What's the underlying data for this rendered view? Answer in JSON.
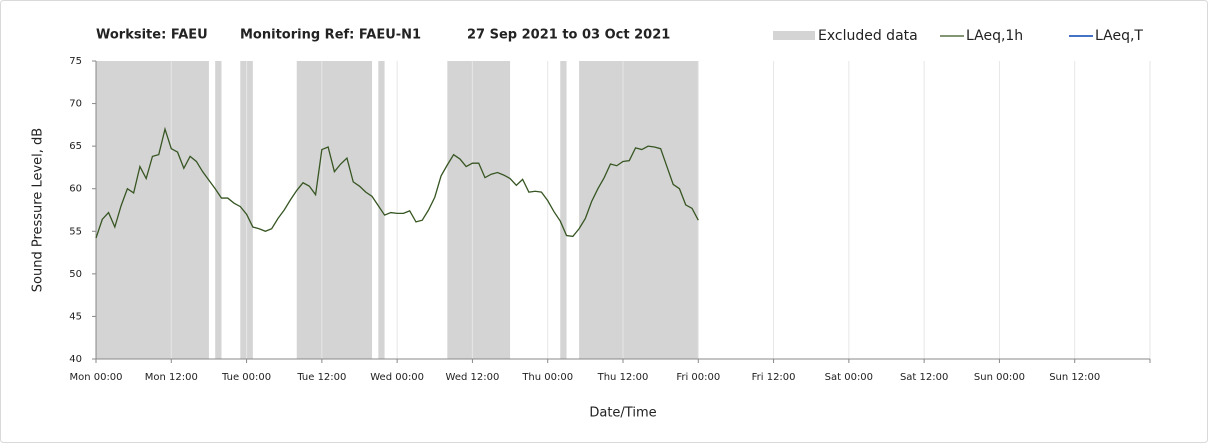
{
  "chart_data": {
    "type": "line",
    "title_parts": [
      "Worksite: FAEU",
      "Monitoring Ref: FAEU-N1",
      "27 Sep 2021 to 03 Oct 2021"
    ],
    "y_label": "Sound Pressure Level, dB",
    "x_label": "Date/Time",
    "xlim": [
      0,
      168
    ],
    "xticks": [
      {
        "value": 0,
        "label": "Mon 00:00"
      },
      {
        "value": 12,
        "label": "Mon 12:00"
      },
      {
        "value": 24,
        "label": "Tue 00:00"
      },
      {
        "value": 36,
        "label": "Tue 12:00"
      },
      {
        "value": 48,
        "label": "Wed 00:00"
      },
      {
        "value": 60,
        "label": "Wed 12:00"
      },
      {
        "value": 72,
        "label": "Thu 00:00"
      },
      {
        "value": 84,
        "label": "Thu 12:00"
      },
      {
        "value": 96,
        "label": "Fri 00:00"
      },
      {
        "value": 108,
        "label": "Fri 12:00"
      },
      {
        "value": 120,
        "label": "Sat 00:00"
      },
      {
        "value": 132,
        "label": "Sat 12:00"
      },
      {
        "value": 144,
        "label": "Sun 00:00"
      },
      {
        "value": 156,
        "label": "Sun 12:00"
      },
      {
        "value": 168,
        "label": ""
      }
    ],
    "ylim": [
      40,
      75
    ],
    "yticks": [
      40,
      45,
      50,
      55,
      60,
      65,
      70,
      75
    ],
    "grid": "x",
    "excluded": {
      "name": "Excluded data",
      "color": "#d4d4d4",
      "spans": [
        [
          0,
          18
        ],
        [
          19,
          20
        ],
        [
          23,
          25
        ],
        [
          32,
          44
        ],
        [
          45,
          46
        ],
        [
          56,
          66
        ],
        [
          74,
          75
        ],
        [
          77,
          96
        ]
      ]
    },
    "x": [
      0,
      1,
      2,
      3,
      4,
      5,
      6,
      7,
      8,
      9,
      10,
      11,
      12,
      13,
      14,
      15,
      16,
      17,
      18,
      19,
      20,
      21,
      22,
      23,
      24,
      25,
      26,
      27,
      28,
      29,
      30,
      31,
      32,
      33,
      34,
      35,
      36,
      37,
      38,
      39,
      40,
      41,
      42,
      43,
      44,
      45,
      46,
      47,
      48,
      49,
      50,
      51,
      52,
      53,
      54,
      55,
      56,
      57,
      58,
      59,
      60,
      61,
      62,
      63,
      64,
      65,
      66,
      67,
      68,
      69,
      70,
      71,
      72,
      73,
      74,
      75,
      76,
      77,
      78,
      79,
      80,
      81,
      82,
      83,
      84,
      85,
      86,
      87,
      88,
      89,
      90,
      91,
      92,
      93,
      94,
      95,
      96
    ],
    "series": [
      {
        "name": "LAeq,1h",
        "color": "#375623",
        "values": [
          54.2,
          56.4,
          57.2,
          55.5,
          58,
          60,
          59.5,
          62.6,
          61.2,
          63.8,
          64,
          67,
          64.7,
          64.3,
          62.4,
          63.8,
          63.2,
          62,
          61,
          60,
          58.9,
          58.9,
          58.3,
          57.9,
          57,
          55.5,
          55.3,
          55,
          55.3,
          56.5,
          57.5,
          58.7,
          59.8,
          60.7,
          60.3,
          59.3,
          64.6,
          64.9,
          62,
          62.9,
          63.6,
          60.8,
          60.3,
          59.6,
          59.1,
          58,
          56.9,
          57.2,
          57.1,
          57.1,
          57.4,
          56.1,
          56.3,
          57.5,
          59,
          61.5,
          62.8,
          64,
          63.5,
          62.6,
          63,
          63,
          61.3,
          61.7,
          61.9,
          61.6,
          61.2,
          60.4,
          61.1,
          59.6,
          59.7,
          59.6,
          58.6,
          57.3,
          56.2,
          54.5,
          54.4,
          55.3,
          56.5,
          58.5,
          60,
          61.3,
          62.9,
          62.7,
          63.2,
          63.3,
          64.8,
          64.6,
          65,
          64.9,
          64.7,
          62.6,
          60.5,
          60,
          58.1,
          57.7,
          56.3
        ]
      },
      {
        "name": "LAeq,T",
        "color": "#4472c4"
      }
    ]
  }
}
